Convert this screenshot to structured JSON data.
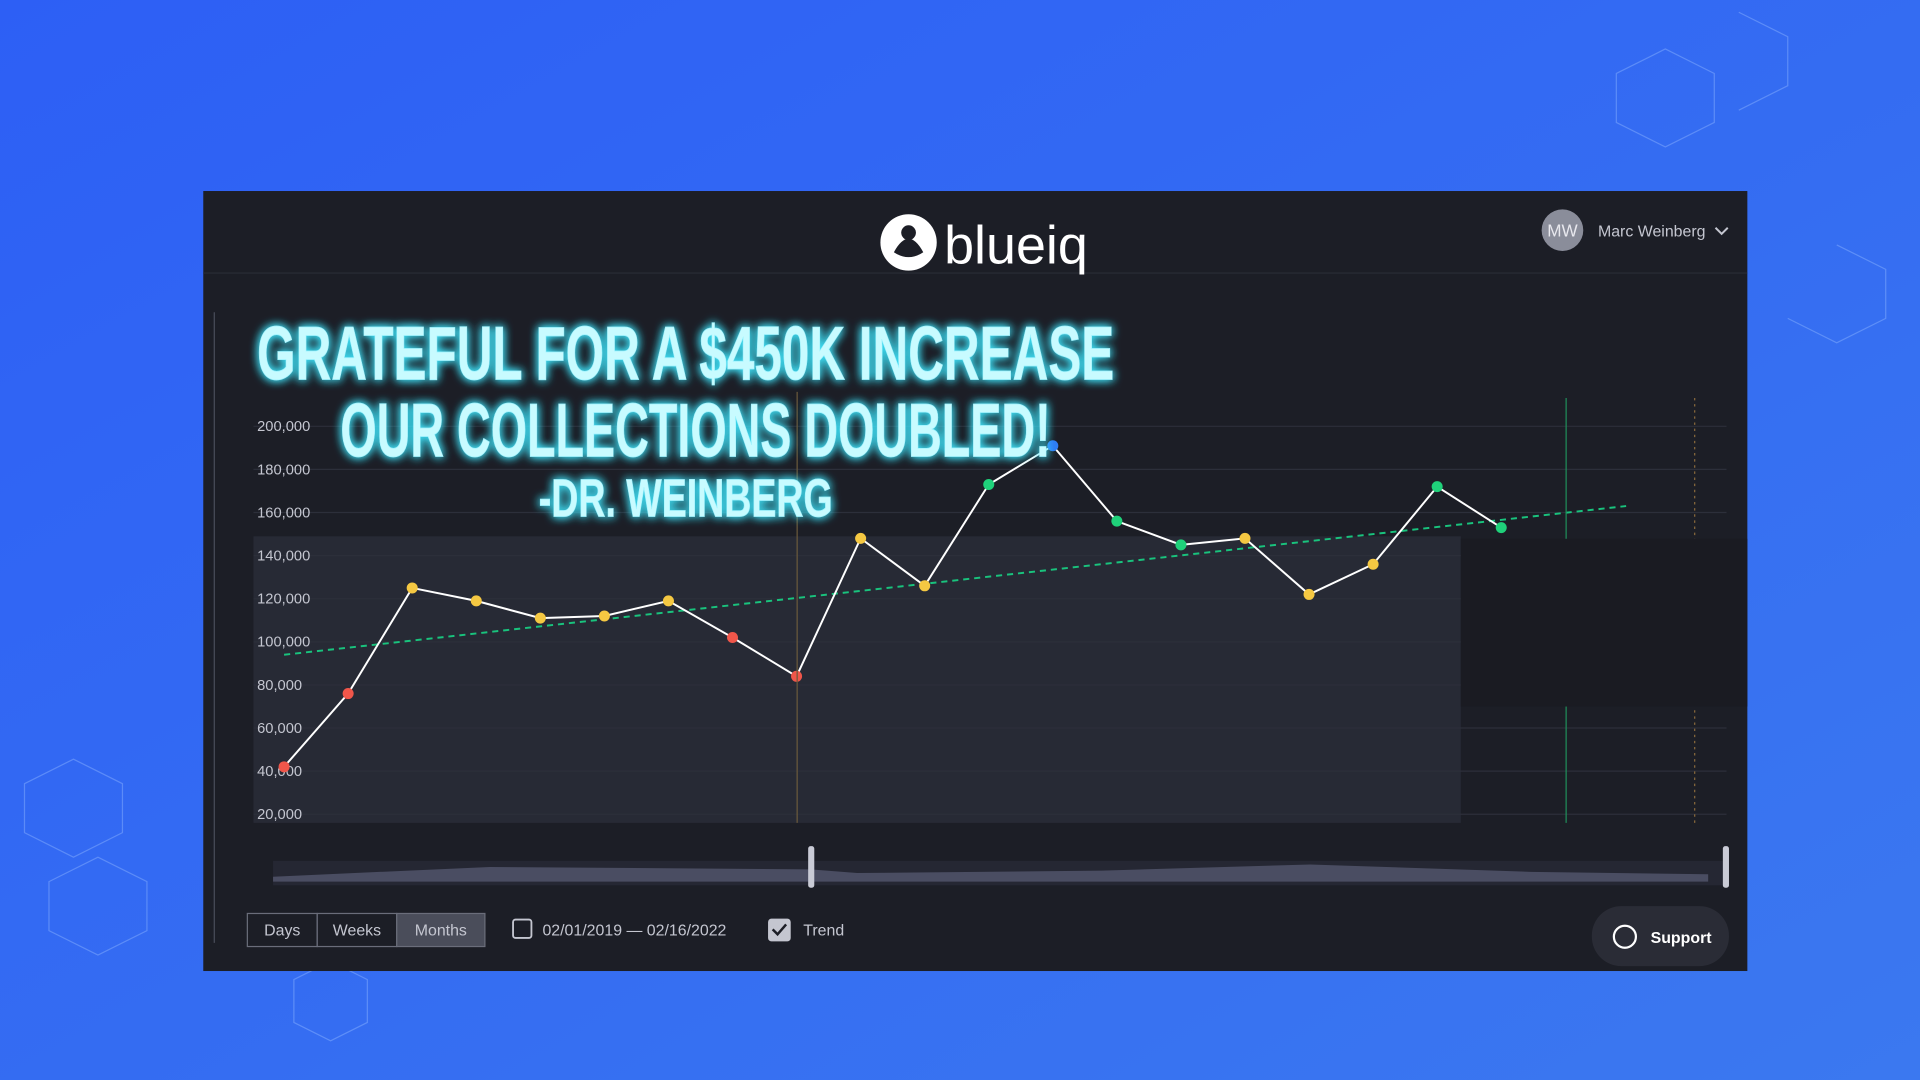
{
  "header": {
    "logo": "blueiq",
    "user_initials": "MW",
    "user_name": "Marc Weinberg"
  },
  "headline": [
    "GRATEFUL FOR A $450K INCREASE",
    "OUR COLLECTIONS DOUBLED!",
    "-DR. WEINBERG"
  ],
  "chart_data": {
    "type": "line",
    "values": [
      42000,
      76000,
      125000,
      119000,
      111000,
      112000,
      119000,
      102000,
      84000,
      148000,
      126000,
      173000,
      191000,
      156000,
      145000,
      148000,
      122000,
      136000,
      172000,
      153000
    ],
    "point_colors": [
      "#f0564a",
      "#f0564a",
      "#f5c842",
      "#f5c842",
      "#f5c842",
      "#f5c842",
      "#f5c842",
      "#f0564a",
      "#f0564a",
      "#f5c842",
      "#f5c842",
      "#1fd17a",
      "#2f7bf5",
      "#1fd17a",
      "#1fd17a",
      "#f5c842",
      "#f5c842",
      "#f5c842",
      "#1fd17a",
      "#1fd17a"
    ],
    "line_color": "#ffffff",
    "ylim": [
      16000,
      216000
    ],
    "yticks": [
      {
        "value": 20000,
        "label": "20,000"
      },
      {
        "value": 40000,
        "label": "40,000"
      },
      {
        "value": 60000,
        "label": "60,000"
      },
      {
        "value": 80000,
        "label": "80,000"
      },
      {
        "value": 100000,
        "label": "100,000"
      },
      {
        "value": 120000,
        "label": "120,000"
      },
      {
        "value": 140000,
        "label": "140,000"
      },
      {
        "value": 160000,
        "label": "160,000"
      },
      {
        "value": 180000,
        "label": "180,000"
      },
      {
        "value": 200000,
        "label": "200,000"
      }
    ],
    "grid": true,
    "trend": {
      "start": 94000,
      "end": 163000,
      "color": "#19c37d"
    }
  },
  "controls": {
    "ranges": [
      "Days",
      "Weeks",
      "Months"
    ],
    "selected_range": 2,
    "date_range": "02/01/2019 — 02/16/2022",
    "trend_label": "Trend",
    "trend_checked": true,
    "support": "Support"
  }
}
